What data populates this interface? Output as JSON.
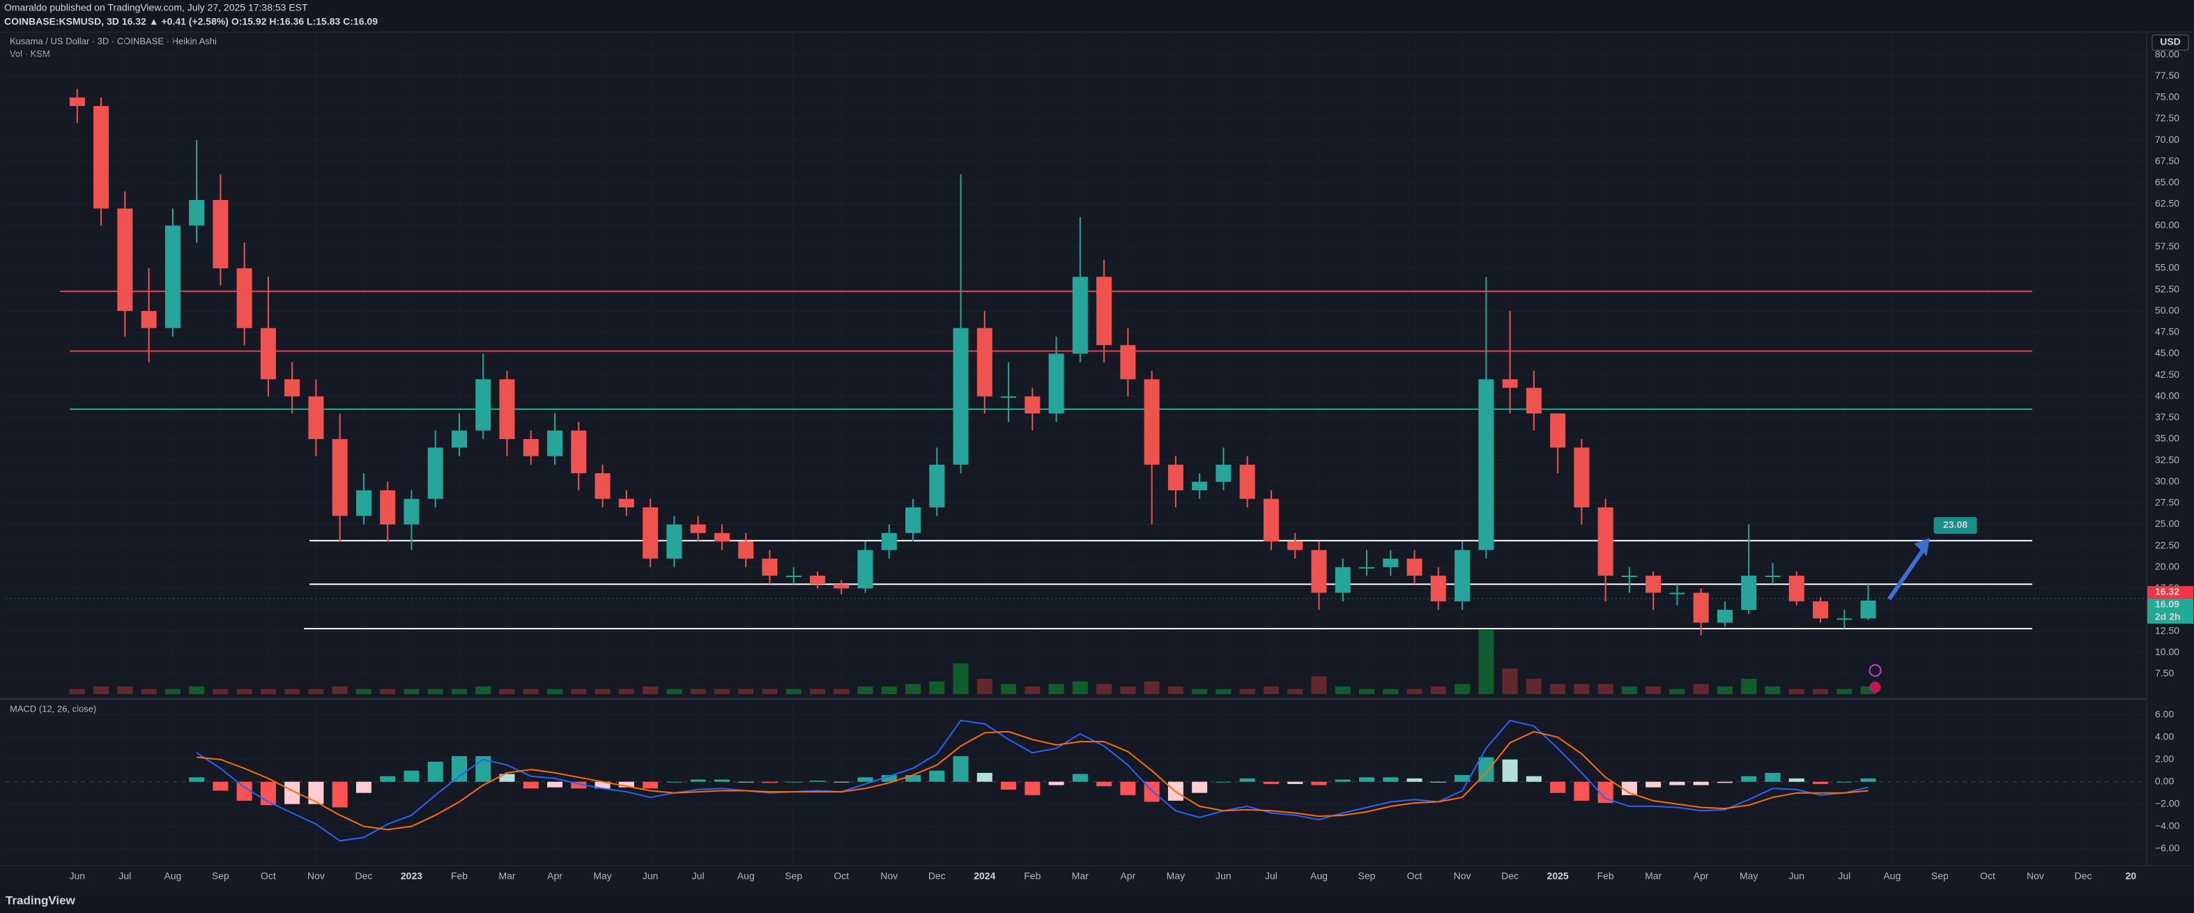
{
  "header": {
    "line1": "Omaraldo published on TradingView.com, July 27, 2025 17:38:53 EST",
    "line2": "COINBASE:KSMUSD, 3D 16.32 ▲ +0.41 (+2.58%) O:15.92 H:16.36 L:15.83 C:16.09"
  },
  "legend": {
    "main": "Kusama / US Dollar · 3D · COINBASE · Heikin Ashi",
    "volume": "Vol · KSM",
    "macd": "MACD (12, 26, close)"
  },
  "currency": "USD",
  "footer": "TradingView",
  "chart_data": {
    "type": "candlestick",
    "x": [
      0,
      0.5,
      1,
      1.5,
      2,
      2.5,
      3,
      3.5,
      4,
      4.5,
      5,
      5.5,
      6,
      6.5,
      7,
      7.5,
      8,
      8.5,
      9,
      9.5,
      10,
      10.5,
      11,
      11.5,
      12,
      12.5,
      13,
      13.5,
      14,
      14.5,
      15,
      15.5,
      16,
      16.5,
      17,
      17.5,
      18,
      18.5,
      19,
      19.5,
      20,
      20.5,
      21,
      21.5,
      22,
      22.5,
      23,
      23.5,
      24,
      24.5,
      25,
      25.5,
      26,
      26.5,
      27,
      27.5,
      28,
      28.5,
      29,
      29.5,
      30,
      30.5,
      31,
      31.5,
      32,
      32.5,
      33,
      33.5,
      34,
      34.5,
      35,
      35.5,
      36,
      36.5,
      37,
      37.5
    ],
    "ohlc": [
      [
        75,
        76,
        72,
        74
      ],
      [
        74,
        75,
        60,
        62
      ],
      [
        62,
        64,
        47,
        50
      ],
      [
        50,
        55,
        44,
        48
      ],
      [
        48,
        62,
        47,
        60
      ],
      [
        60,
        70,
        58,
        63
      ],
      [
        63,
        66,
        53,
        55
      ],
      [
        55,
        58,
        46,
        48
      ],
      [
        48,
        54,
        40,
        42
      ],
      [
        42,
        44,
        38,
        40
      ],
      [
        40,
        42,
        33,
        35
      ],
      [
        35,
        38,
        23,
        26
      ],
      [
        26,
        31,
        25,
        29
      ],
      [
        29,
        30,
        23,
        25
      ],
      [
        25,
        29,
        22,
        28
      ],
      [
        28,
        36,
        27,
        34
      ],
      [
        34,
        38,
        33,
        36
      ],
      [
        36,
        45,
        35,
        42
      ],
      [
        42,
        43,
        33,
        35
      ],
      [
        35,
        36,
        32,
        33
      ],
      [
        33,
        38,
        32,
        36
      ],
      [
        36,
        37,
        29,
        31
      ],
      [
        31,
        32,
        27,
        28
      ],
      [
        28,
        29,
        26,
        27
      ],
      [
        27,
        28,
        20,
        21
      ],
      [
        21,
        26,
        20,
        25
      ],
      [
        25,
        26,
        23,
        24
      ],
      [
        24,
        25,
        22,
        23
      ],
      [
        23,
        24,
        20,
        21
      ],
      [
        21,
        22,
        18,
        19
      ],
      [
        19,
        20,
        18,
        19
      ],
      [
        19,
        19.5,
        17.5,
        18
      ],
      [
        18,
        18.5,
        16.8,
        17.5
      ],
      [
        17.5,
        23,
        17,
        22
      ],
      [
        22,
        25,
        21,
        24
      ],
      [
        24,
        28,
        23,
        27
      ],
      [
        27,
        34,
        26,
        32
      ],
      [
        32,
        66,
        31,
        48
      ],
      [
        48,
        50,
        38,
        40
      ],
      [
        40,
        44,
        37,
        40
      ],
      [
        40,
        41,
        36,
        38
      ],
      [
        38,
        47,
        37,
        45
      ],
      [
        45,
        61,
        44,
        54
      ],
      [
        54,
        56,
        44,
        46
      ],
      [
        46,
        48,
        40,
        42
      ],
      [
        42,
        43,
        25,
        32
      ],
      [
        32,
        33,
        27,
        29
      ],
      [
        29,
        31,
        28,
        30
      ],
      [
        30,
        34,
        29,
        32
      ],
      [
        32,
        33,
        27,
        28
      ],
      [
        28,
        29,
        22,
        23
      ],
      [
        23,
        24,
        21,
        22
      ],
      [
        22,
        23,
        15,
        17
      ],
      [
        17,
        21,
        16,
        20
      ],
      [
        20,
        22,
        19,
        20
      ],
      [
        20,
        22,
        19,
        21
      ],
      [
        21,
        22,
        18,
        19
      ],
      [
        19,
        20,
        15,
        16
      ],
      [
        16,
        23,
        15,
        22
      ],
      [
        22,
        54,
        21,
        42
      ],
      [
        42,
        50,
        38,
        41
      ],
      [
        41,
        43,
        36,
        38
      ],
      [
        38,
        38,
        31,
        34
      ],
      [
        34,
        35,
        25,
        27
      ],
      [
        27,
        28,
        16,
        19
      ],
      [
        19,
        20,
        17,
        19
      ],
      [
        19,
        19.5,
        15,
        17
      ],
      [
        17,
        18,
        15.5,
        17
      ],
      [
        17,
        17.5,
        12,
        13.5
      ],
      [
        13.5,
        16,
        13,
        15
      ],
      [
        15,
        25,
        14.5,
        19
      ],
      [
        19,
        20.5,
        18,
        19
      ],
      [
        19,
        19.5,
        15.5,
        16
      ],
      [
        16,
        16.5,
        13.5,
        14
      ],
      [
        14,
        15,
        12.8,
        14
      ],
      [
        14,
        18,
        13.8,
        16.09
      ]
    ],
    "volume": [
      2,
      3,
      3,
      2,
      2,
      3,
      2,
      2,
      2,
      2,
      2,
      3,
      2,
      2,
      2,
      2,
      2,
      3,
      2,
      2,
      2,
      2,
      2,
      2,
      3,
      2,
      2,
      2,
      2,
      2,
      2,
      2,
      2,
      3,
      3,
      4,
      5,
      12,
      6,
      4,
      3,
      4,
      5,
      4,
      3,
      5,
      3,
      2,
      2,
      2,
      3,
      2,
      7,
      3,
      2,
      2,
      2,
      3,
      4,
      25,
      10,
      6,
      4,
      4,
      4,
      3,
      3,
      2,
      4,
      3,
      6,
      3,
      2,
      2,
      2,
      3
    ],
    "up_color": "#26a69a",
    "down_color": "#ef5350",
    "xlim": [
      -1.5,
      43.3
    ],
    "xticks": [
      {
        "value": 0,
        "label": "Jun"
      },
      {
        "value": 1,
        "label": "Jul"
      },
      {
        "value": 2,
        "label": "Aug"
      },
      {
        "value": 3,
        "label": "Sep"
      },
      {
        "value": 4,
        "label": "Oct"
      },
      {
        "value": 5,
        "label": "Nov"
      },
      {
        "value": 6,
        "label": "Dec"
      },
      {
        "value": 7,
        "label": "2023"
      },
      {
        "value": 8,
        "label": "Feb"
      },
      {
        "value": 9,
        "label": "Mar"
      },
      {
        "value": 10,
        "label": "Apr"
      },
      {
        "value": 11,
        "label": "May"
      },
      {
        "value": 12,
        "label": "Jun"
      },
      {
        "value": 13,
        "label": "Jul"
      },
      {
        "value": 14,
        "label": "Aug"
      },
      {
        "value": 15,
        "label": "Sep"
      },
      {
        "value": 16,
        "label": "Oct"
      },
      {
        "value": 17,
        "label": "Nov"
      },
      {
        "value": 18,
        "label": "Dec"
      },
      {
        "value": 19,
        "label": "2024"
      },
      {
        "value": 20,
        "label": "Feb"
      },
      {
        "value": 21,
        "label": "Mar"
      },
      {
        "value": 22,
        "label": "Apr"
      },
      {
        "value": 23,
        "label": "May"
      },
      {
        "value": 24,
        "label": "Jun"
      },
      {
        "value": 25,
        "label": "Jul"
      },
      {
        "value": 26,
        "label": "Aug"
      },
      {
        "value": 27,
        "label": "Sep"
      },
      {
        "value": 28,
        "label": "Oct"
      },
      {
        "value": 29,
        "label": "Nov"
      },
      {
        "value": 30,
        "label": "Dec"
      },
      {
        "value": 31,
        "label": "2025"
      },
      {
        "value": 32,
        "label": "Feb"
      },
      {
        "value": 33,
        "label": "Mar"
      },
      {
        "value": 34,
        "label": "Apr"
      },
      {
        "value": 35,
        "label": "May"
      },
      {
        "value": 36,
        "label": "Jun"
      },
      {
        "value": 37,
        "label": "Jul"
      },
      {
        "value": 38,
        "label": "Aug"
      },
      {
        "value": 39,
        "label": "Sep"
      },
      {
        "value": 40,
        "label": "Oct"
      },
      {
        "value": 41,
        "label": "Nov"
      },
      {
        "value": 42,
        "label": "Dec"
      },
      {
        "value": 43,
        "label": "20"
      }
    ],
    "ylim": [
      4.8,
      82.5
    ],
    "yticks": [
      {
        "value": 7.5,
        "label": "7.50"
      },
      {
        "value": 10,
        "label": "10.00"
      },
      {
        "value": 12.5,
        "label": "12.50"
      },
      {
        "value": 15,
        "label": "15.00"
      },
      {
        "value": 17.5,
        "label": "17.50"
      },
      {
        "value": 20,
        "label": "20.00"
      },
      {
        "value": 22.5,
        "label": "22.50"
      },
      {
        "value": 25,
        "label": "25.00"
      },
      {
        "value": 27.5,
        "label": "27.50"
      },
      {
        "value": 30,
        "label": "30.00"
      },
      {
        "value": 32.5,
        "label": "32.50"
      },
      {
        "value": 35,
        "label": "35.00"
      },
      {
        "value": 37.5,
        "label": "37.50"
      },
      {
        "value": 40,
        "label": "40.00"
      },
      {
        "value": 42.5,
        "label": "42.50"
      },
      {
        "value": 45,
        "label": "45.00"
      },
      {
        "value": 47.5,
        "label": "47.50"
      },
      {
        "value": 50,
        "label": "50.00"
      },
      {
        "value": 52.5,
        "label": "52.50"
      },
      {
        "value": 55,
        "label": "55.00"
      },
      {
        "value": 57.5,
        "label": "57.50"
      },
      {
        "value": 60,
        "label": "60.00"
      },
      {
        "value": 62.5,
        "label": "62.50"
      },
      {
        "value": 65,
        "label": "65.00"
      },
      {
        "value": 67.5,
        "label": "67.50"
      },
      {
        "value": 70,
        "label": "70.00"
      },
      {
        "value": 72.5,
        "label": "72.50"
      },
      {
        "value": 75,
        "label": "75.00"
      },
      {
        "value": 77.5,
        "label": "77.50"
      },
      {
        "value": 80,
        "label": "80.00"
      }
    ],
    "levels": [
      {
        "value": 52.3,
        "color": "#f23645"
      },
      {
        "value": 45.3,
        "color": "#f23645"
      },
      {
        "value": 38.5,
        "color": "#22ab94"
      },
      {
        "value": 23.1,
        "color": "#ffffff"
      },
      {
        "value": 18,
        "color": "#ffffff"
      },
      {
        "value": 12.8,
        "color": "#ffffff"
      }
    ],
    "target": {
      "value": 23.08,
      "label": "23.08"
    },
    "last_price": 16.32,
    "close_price": 16.09,
    "countdown": "2d 2h",
    "macd": {
      "macd_color": "#2962ff",
      "signal_color": "#ff6d00",
      "macd": [
        null,
        null,
        null,
        null,
        null,
        2.6,
        1.2,
        -0.5,
        -1.8,
        -2.8,
        -3.8,
        -5.3,
        -5.0,
        -3.8,
        -3.0,
        -1.2,
        0.5,
        2.0,
        1.5,
        0.5,
        0.3,
        -0.2,
        -0.6,
        -0.9,
        -1.4,
        -1.0,
        -0.7,
        -0.6,
        -0.8,
        -1.0,
        -0.9,
        -0.8,
        -0.9,
        -0.2,
        0.5,
        1.2,
        2.5,
        5.5,
        5.2,
        3.8,
        2.6,
        3.0,
        4.3,
        3.2,
        1.5,
        -0.8,
        -2.6,
        -3.2,
        -2.6,
        -2.2,
        -2.8,
        -3.0,
        -3.4,
        -2.8,
        -2.3,
        -1.8,
        -1.6,
        -1.8,
        -0.8,
        3.0,
        5.5,
        5.0,
        3.0,
        0.8,
        -1.5,
        -2.2,
        -2.2,
        -2.3,
        -2.6,
        -2.5,
        -1.6,
        -0.6,
        -0.7,
        -1.2,
        -1.0,
        -0.5
      ],
      "signal": [
        null,
        null,
        null,
        null,
        null,
        2.2,
        2.0,
        1.2,
        0.3,
        -0.8,
        -1.8,
        -3.0,
        -4.0,
        -4.3,
        -4.0,
        -3.0,
        -1.8,
        -0.3,
        0.8,
        1.1,
        0.8,
        0.4,
        0.0,
        -0.4,
        -0.8,
        -1.0,
        -0.9,
        -0.8,
        -0.8,
        -0.9,
        -0.9,
        -0.9,
        -0.9,
        -0.6,
        -0.1,
        0.6,
        1.5,
        3.2,
        4.4,
        4.5,
        3.8,
        3.3,
        3.6,
        3.6,
        2.7,
        1.0,
        -0.9,
        -2.2,
        -2.6,
        -2.5,
        -2.6,
        -2.8,
        -3.1,
        -3.0,
        -2.7,
        -2.2,
        -1.9,
        -1.8,
        -1.4,
        0.8,
        3.5,
        4.5,
        4.0,
        2.5,
        0.4,
        -1.0,
        -1.7,
        -2.0,
        -2.3,
        -2.4,
        -2.1,
        -1.4,
        -1.0,
        -1.0,
        -1.0,
        -0.8
      ],
      "histogram": [
        null,
        null,
        null,
        null,
        null,
        0.4,
        -0.8,
        -1.7,
        -2.1,
        -2.0,
        -2.0,
        -2.3,
        -1.0,
        0.5,
        1.0,
        1.8,
        2.3,
        2.3,
        0.7,
        -0.6,
        -0.5,
        -0.6,
        -0.6,
        -0.5,
        -0.6,
        0.0,
        0.2,
        0.2,
        0.0,
        -0.1,
        0.0,
        0.1,
        0.0,
        0.4,
        0.6,
        0.6,
        1.0,
        2.3,
        0.8,
        -0.7,
        -1.2,
        -0.3,
        0.7,
        -0.4,
        -1.2,
        -1.8,
        -1.7,
        -1.0,
        0.0,
        0.3,
        -0.2,
        -0.2,
        -0.3,
        0.2,
        0.4,
        0.4,
        0.3,
        0.0,
        0.6,
        2.2,
        2.0,
        0.5,
        -1.0,
        -1.7,
        -1.9,
        -1.2,
        -0.5,
        -0.3,
        -0.3,
        -0.1,
        0.5,
        0.8,
        0.3,
        -0.2,
        0.0,
        0.3
      ],
      "ylim": [
        -7.4,
        7.3
      ],
      "yticks": [
        {
          "value": -6,
          "label": "−6.00"
        },
        {
          "value": -4,
          "label": "−4.00"
        },
        {
          "value": -2,
          "label": "−2.00"
        },
        {
          "value": 0,
          "label": "0.00"
        },
        {
          "value": 2,
          "label": "2.00"
        },
        {
          "value": 4,
          "label": "4.00"
        },
        {
          "value": 6,
          "label": "6.00"
        }
      ]
    }
  }
}
